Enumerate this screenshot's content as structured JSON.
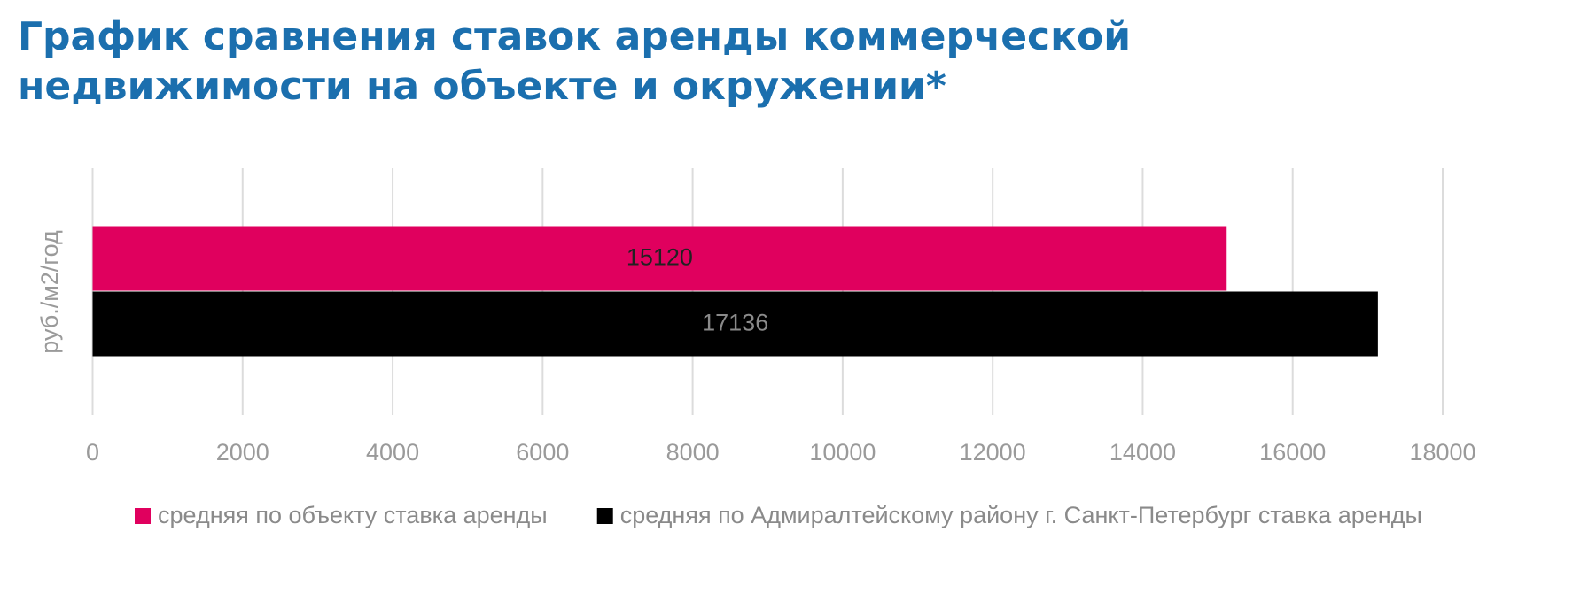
{
  "chart_data": {
    "type": "hbar",
    "title": "График сравнения ставок аренды коммерческой недвижимости на объекте и окружении*",
    "y_label": "руб./м2/год",
    "categories": [
      null
    ],
    "series": [
      {
        "name": "средняя по объекту ставка аренды",
        "color": "#e0005e",
        "values": [
          15120
        ],
        "label_color": "#222222"
      },
      {
        "name": "средняя по Адмиралтейскому району г. Санкт-Петербург ставка аренды",
        "color": "#000000",
        "values": [
          17136
        ],
        "label_color": "#8a8a8a"
      }
    ],
    "xlim": [
      0,
      18000
    ],
    "xticks": [
      0,
      2000,
      4000,
      6000,
      8000,
      10000,
      12000,
      14000,
      16000,
      18000
    ],
    "grid": true,
    "legend": "bottom"
  }
}
